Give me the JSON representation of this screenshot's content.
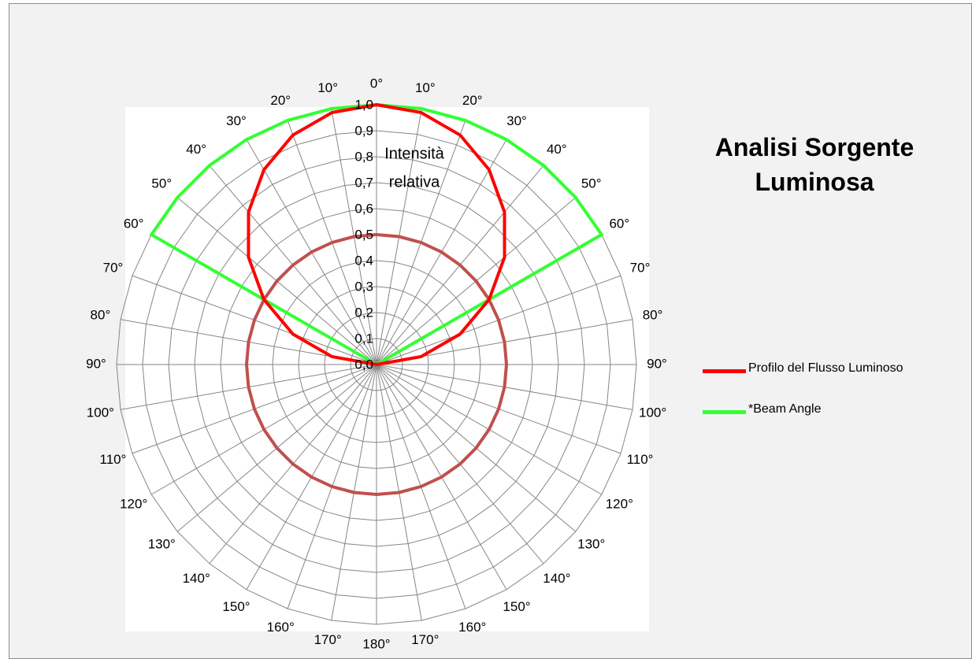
{
  "chart_data": {
    "type": "polar-line",
    "title": "Analisi Sorgente Luminosa",
    "radial_axis": {
      "title_lines": [
        "Intensità",
        "relativa"
      ],
      "range": [
        0,
        1
      ],
      "ticks": [
        "0,0",
        "0,1",
        "0,2",
        "0,3",
        "0,4",
        "0,5",
        "0,6",
        "0,7",
        "0,8",
        "0,9",
        "1,0"
      ]
    },
    "angle_labels_right": [
      "0°",
      "10°",
      "20°",
      "30°",
      "40°",
      "50°",
      "60°",
      "70°",
      "80°",
      "90°",
      "100°",
      "110°",
      "120°",
      "130°",
      "140°",
      "150°",
      "160°",
      "170°",
      "180°"
    ],
    "angle_labels_left": [
      "10°",
      "20°",
      "30°",
      "40°",
      "50°",
      "60°",
      "70°",
      "80°",
      "90°",
      "100°",
      "110°",
      "120°",
      "130°",
      "140°",
      "150°",
      "160°",
      "170°"
    ],
    "grid": true,
    "legend_position": "right",
    "series": [
      {
        "name": "Profilo del Flusso Luminoso",
        "color": "#ff0000",
        "angles": [
          0,
          10,
          20,
          30,
          40,
          50,
          60,
          70,
          80,
          90
        ],
        "values": [
          1.0,
          0.985,
          0.94,
          0.866,
          0.766,
          0.643,
          0.5,
          0.342,
          0.174,
          0.0
        ]
      },
      {
        "name": "*Beam Angle",
        "color": "#33ff33",
        "angles": [
          0,
          10,
          20,
          30,
          40,
          50,
          60,
          70,
          80,
          90
        ],
        "values": [
          1.0,
          1.0,
          1.0,
          1.0,
          1.0,
          1.0,
          1.0,
          0.0,
          0.0,
          0.0
        ]
      },
      {
        "color": "#c0504d",
        "angles": "all",
        "values": "constant 0.5"
      }
    ]
  }
}
